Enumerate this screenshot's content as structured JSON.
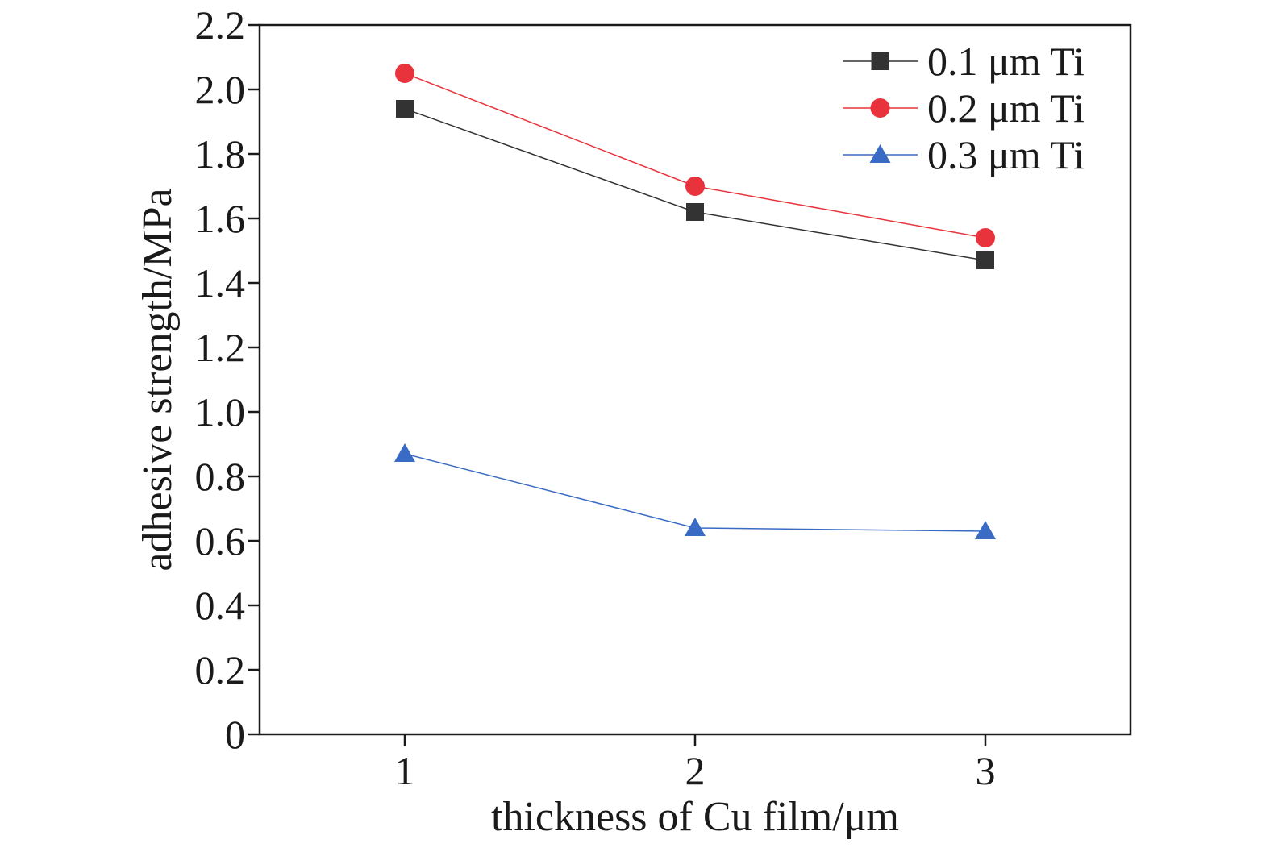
{
  "chart_data": {
    "type": "line",
    "xlabel": "thickness of Cu film/μm",
    "ylabel": "adhesive strength/MPa",
    "x": [
      1,
      2,
      3
    ],
    "xlim": [
      0.5,
      3.5
    ],
    "ylim": [
      0,
      2.2
    ],
    "xticks": [
      "1",
      "2",
      "3"
    ],
    "yticks": [
      "0",
      "0.2",
      "0.4",
      "0.6",
      "0.8",
      "1.0",
      "1.2",
      "1.4",
      "1.6",
      "1.8",
      "2.0",
      "2.2"
    ],
    "grid": false,
    "legend_position": "top-right",
    "series": [
      {
        "name": "0.1 μm Ti",
        "values": [
          1.94,
          1.62,
          1.47
        ],
        "color": "#333333",
        "marker": "square"
      },
      {
        "name": "0.2 μm Ti",
        "values": [
          2.05,
          1.7,
          1.54
        ],
        "color": "#e8323c",
        "marker": "circle"
      },
      {
        "name": "0.3 μm Ti",
        "values": [
          0.87,
          0.64,
          0.63
        ],
        "color": "#3a6bc4",
        "marker": "triangle"
      }
    ]
  }
}
